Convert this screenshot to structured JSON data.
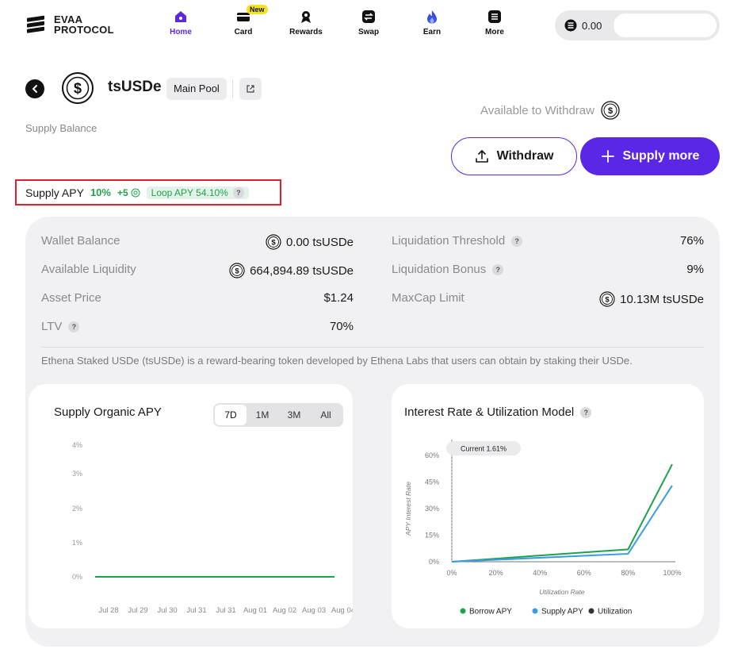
{
  "header": {
    "logo_line1": "EVAA",
    "logo_line2": "PROTOCOL",
    "nav": [
      {
        "label": "Home",
        "icon": "home-icon",
        "active": true
      },
      {
        "label": "Card",
        "icon": "card-icon",
        "badge": "New"
      },
      {
        "label": "Rewards",
        "icon": "rewards-icon"
      },
      {
        "label": "Swap",
        "icon": "swap-icon"
      },
      {
        "label": "Earn",
        "icon": "earn-flame-icon"
      },
      {
        "label": "More",
        "icon": "more-icon"
      }
    ],
    "wallet_balance": "0.00"
  },
  "asset": {
    "name": "tsUSDe",
    "pool": "Main Pool",
    "supply_balance_label": "Supply Balance",
    "available_to_withdraw_label": "Available to Withdraw"
  },
  "actions": {
    "withdraw_label": "Withdraw",
    "supply_more_label": "Supply more"
  },
  "apy": {
    "label": "Supply APY",
    "value": "10%",
    "bonus": "+5",
    "loop": "Loop APY 54.10%"
  },
  "stats": {
    "left": [
      {
        "label": "Wallet Balance",
        "value": "0.00 tsUSDe",
        "token_icon": true
      },
      {
        "label": "Available Liquidity",
        "value": "664,894.89 tsUSDe",
        "token_icon": true
      },
      {
        "label": "Asset Price",
        "value": "$1.24"
      },
      {
        "label": "LTV",
        "value": "70%",
        "help": true
      }
    ],
    "right": [
      {
        "label": "Liquidation Threshold",
        "value": "76%",
        "help": true
      },
      {
        "label": "Liquidation Bonus",
        "value": "9%",
        "help": true
      },
      {
        "label": "MaxCap Limit",
        "value": "10.13M tsUSDe",
        "token_icon": true
      }
    ]
  },
  "description": "Ethena Staked USDe (tsUSDe) is a reward-bearing token developed by Ethena Labs that users can obtain by staking their USDe.",
  "colors": {
    "accent": "#5b27e6",
    "green": "#1ea34a",
    "blue": "#3b9be8",
    "highlight_border": "#e0202a"
  },
  "chart_data": [
    {
      "type": "line",
      "title": "Supply Organic APY",
      "ranges": [
        "7D",
        "1M",
        "3M",
        "All"
      ],
      "active_range": "7D",
      "x": [
        "Jul 28",
        "Jul 29",
        "Jul 30",
        "Jul 31",
        "Jul 31",
        "Aug 01",
        "Aug 02",
        "Aug 03",
        "Aug 04"
      ],
      "y_ticks": [
        "4%",
        "3%",
        "2%",
        "1%",
        "0%"
      ],
      "series": [
        {
          "values": [
            0,
            0,
            0,
            0,
            0,
            0,
            0,
            0,
            0
          ]
        }
      ],
      "ylim": [
        0,
        4
      ]
    },
    {
      "type": "line",
      "title": "Interest Rate & Utilization Model",
      "xlabel": "Utilization Rate",
      "ylabel": "APY Interest Rate",
      "x_ticks": [
        "0%",
        "20%",
        "40%",
        "60%",
        "80%",
        "100%"
      ],
      "y_ticks": [
        "60%",
        "45%",
        "30%",
        "15%",
        "0%"
      ],
      "current_label": "Current 1.61%",
      "legend": [
        "Borrow APY",
        "Supply APY",
        "Utilization"
      ],
      "series": [
        {
          "name": "Borrow APY",
          "x": [
            0,
            80,
            100
          ],
          "y": [
            0,
            7,
            55
          ]
        },
        {
          "name": "Supply APY",
          "x": [
            0,
            80,
            100
          ],
          "y": [
            0,
            4.5,
            43
          ]
        }
      ],
      "xlim": [
        0,
        100
      ],
      "ylim": [
        0,
        60
      ]
    }
  ]
}
